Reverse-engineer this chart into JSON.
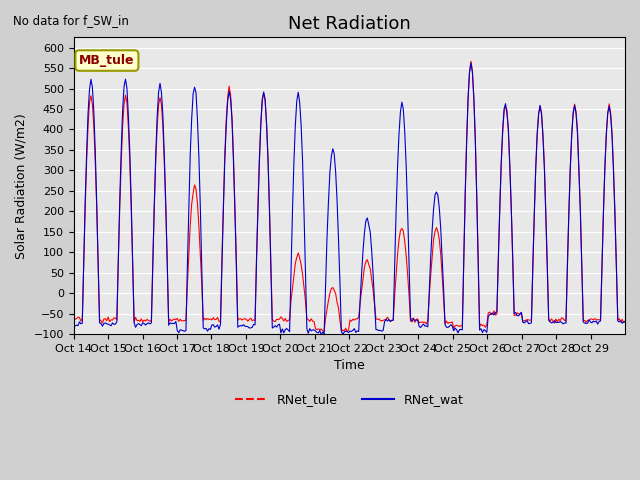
{
  "title": "Net Radiation",
  "xlabel": "Time",
  "ylabel": "Solar Radiation (W/m2)",
  "annotation": "No data for f_SW_in",
  "legend_label_box": "MB_tule",
  "legend_entries": [
    "RNet_tule",
    "RNet_wat"
  ],
  "legend_colors": [
    "#ff0000",
    "#0000cc"
  ],
  "ylim": [
    -100,
    625
  ],
  "yticks": [
    -100,
    -50,
    0,
    50,
    100,
    150,
    200,
    250,
    300,
    350,
    400,
    450,
    500,
    550,
    600
  ],
  "xtick_labels": [
    "Oct 14",
    "Oct 15",
    "Oct 16",
    "Oct 17",
    "Oct 18",
    "Oct 19",
    "Oct 20",
    "Oct 21",
    "Oct 22",
    "Oct 23",
    "Oct 24",
    "Oct 25",
    "Oct 26",
    "Oct 27",
    "Oct 28",
    "Oct 29"
  ],
  "bg_color": "#d0d0d0",
  "plot_bg_color": "#e8e8e8",
  "grid_color": "#ffffff",
  "title_fontsize": 13,
  "label_fontsize": 9,
  "tick_fontsize": 8,
  "peaks_tule": [
    480,
    480,
    480,
    260,
    500,
    490,
    95,
    15,
    80,
    160,
    160,
    565,
    460,
    460,
    460,
    460
  ],
  "peaks_wat": [
    520,
    520,
    510,
    510,
    490,
    490,
    490,
    355,
    185,
    465,
    250,
    565,
    465,
    455,
    460,
    455
  ],
  "night_tule": [
    -65,
    -65,
    -65,
    -65,
    -65,
    -65,
    -65,
    -90,
    -65,
    -65,
    -70,
    -80,
    -50,
    -65,
    -65,
    -65
  ],
  "night_wat": [
    -75,
    -75,
    -75,
    -90,
    -80,
    -80,
    -90,
    -95,
    -90,
    -65,
    -80,
    -90,
    -50,
    -70,
    -70,
    -70
  ]
}
